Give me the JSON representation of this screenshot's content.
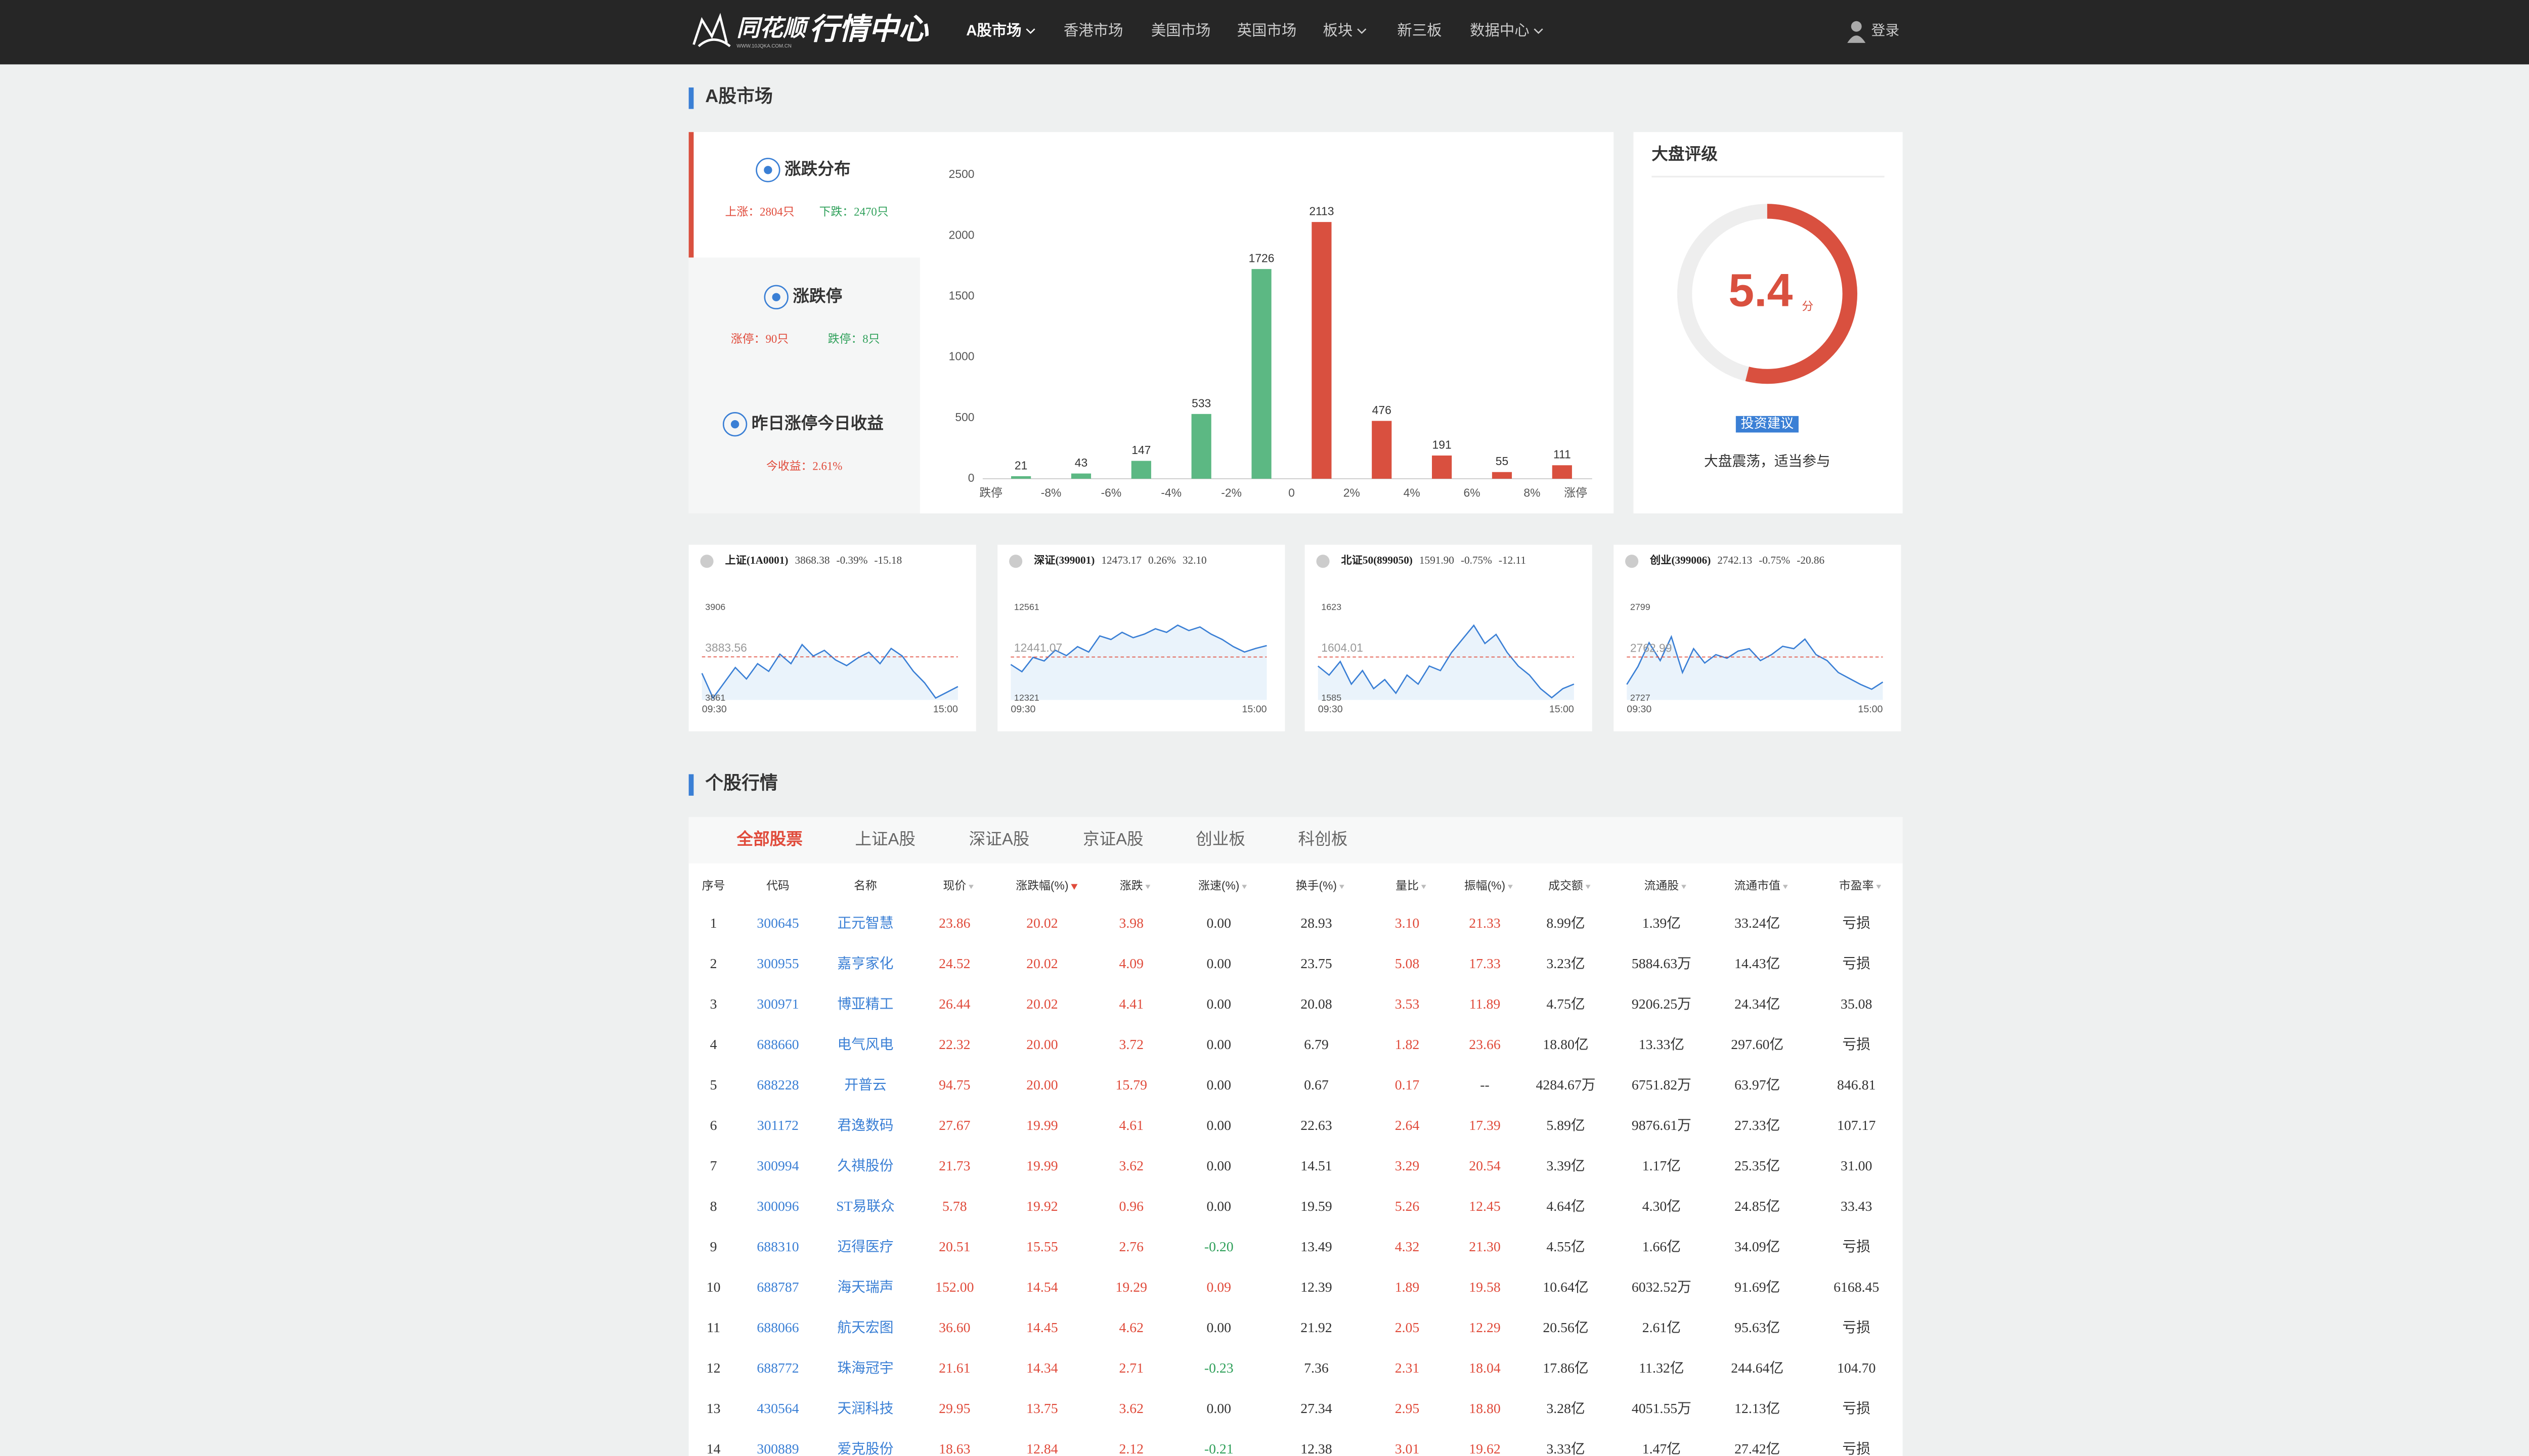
{
  "nav": {
    "logo": "同花顺",
    "logo_sub": "行情中心",
    "logo_url": "WWW.10JQKA.COM.CN",
    "items": [
      "A股市场",
      "香港市场",
      "美国市场",
      "英国市场",
      "板块",
      "新三板",
      "数据中心"
    ],
    "login": "登录"
  },
  "market": {
    "title": "A股市场",
    "tabs": [
      {
        "title": "涨跌分布",
        "stats": [
          "上涨：2804只",
          "下跌：2470只"
        ]
      },
      {
        "title": "涨跌停",
        "stats": [
          "涨停：90只",
          "跌停：8只"
        ]
      },
      {
        "title": "昨日涨停今日收益",
        "stats": [
          "今收益：2.61%"
        ]
      }
    ],
    "distribution": {
      "type": "bar",
      "bins": [
        "跌停",
        "-8%",
        "-6%",
        "-4%",
        "-2%",
        "0",
        "2%",
        "4%",
        "6%",
        "8%",
        "涨停"
      ],
      "values": [
        21,
        43,
        147,
        533,
        1726,
        2113,
        476,
        191,
        55,
        111
      ],
      "colors": [
        "#5cb883",
        "#5cb883",
        "#5cb883",
        "#5cb883",
        "#5cb883",
        "#d9503f",
        "#d9503f",
        "#d9503f",
        "#d9503f",
        "#d9503f"
      ],
      "ylim": [
        0,
        2500
      ],
      "yticks": [
        0,
        500,
        1000,
        1500,
        2000,
        2500
      ]
    }
  },
  "rating": {
    "title": "大盘评级",
    "score": 5.4,
    "unit": "分",
    "badge": "投资建议",
    "comment": "大盘震荡，适当参与"
  },
  "indices": [
    {
      "type": "line",
      "name": "上证(1A0001)",
      "price": "3868.38",
      "pct": "-0.39%",
      "change": "-15.18",
      "ylim": [
        3861,
        3906
      ],
      "yticks": [
        3861,
        3906
      ],
      "prev_close": 3883.56,
      "xticks": [
        "09:30",
        "15:00"
      ],
      "values": [
        3875,
        3862,
        3870,
        3878,
        3872,
        3880,
        3876,
        3885,
        3880,
        3890,
        3884,
        3887,
        3882,
        3879,
        3883,
        3886,
        3880,
        3888,
        3884,
        3876,
        3870,
        3862,
        3865,
        3868
      ]
    },
    {
      "type": "line",
      "name": "深证(399001)",
      "price": "12473.17",
      "pct": "0.26%",
      "change": "32.10",
      "ylim": [
        12321,
        12561
      ],
      "yticks": [
        12321,
        12561
      ],
      "prev_close": 12441.07,
      "xticks": [
        "09:30",
        "15:00"
      ],
      "values": [
        12420,
        12400,
        12440,
        12430,
        12460,
        12445,
        12470,
        12455,
        12500,
        12490,
        12510,
        12495,
        12505,
        12520,
        12510,
        12530,
        12515,
        12525,
        12505,
        12490,
        12470,
        12455,
        12465,
        12473
      ]
    },
    {
      "type": "line",
      "name": "北证50(899050)",
      "price": "1591.90",
      "pct": "-0.75%",
      "change": "-12.11",
      "ylim": [
        1585,
        1623
      ],
      "yticks": [
        1585,
        1623
      ],
      "prev_close": 1604.01,
      "xticks": [
        "09:30",
        "15:00"
      ],
      "values": [
        1600,
        1596,
        1602,
        1592,
        1598,
        1590,
        1594,
        1588,
        1596,
        1592,
        1600,
        1598,
        1606,
        1612,
        1618,
        1610,
        1614,
        1606,
        1600,
        1596,
        1590,
        1586,
        1590,
        1592
      ]
    },
    {
      "type": "line",
      "name": "创业(399006)",
      "price": "2742.13",
      "pct": "-0.75%",
      "change": "-20.86",
      "ylim": [
        2727,
        2799
      ],
      "yticks": [
        2727,
        2799
      ],
      "prev_close": 2762.99,
      "xticks": [
        "09:30",
        "15:00"
      ],
      "values": [
        2740,
        2755,
        2775,
        2760,
        2780,
        2750,
        2770,
        2758,
        2765,
        2762,
        2768,
        2770,
        2760,
        2765,
        2772,
        2770,
        2778,
        2765,
        2760,
        2750,
        2745,
        2740,
        2736,
        2742
      ]
    }
  ],
  "stocks": {
    "title": "个股行情",
    "tabs": [
      "全部股票",
      "上证A股",
      "深证A股",
      "京证A股",
      "创业板",
      "科创板"
    ],
    "active_tab": 0,
    "sorted_column": 4,
    "columns": [
      "序号",
      "代码",
      "名称",
      "现价",
      "涨跌幅(%)",
      "涨跌",
      "涨速(%)",
      "换手(%)",
      "量比",
      "振幅(%)",
      "成交额",
      "流通股",
      "流通市值",
      "市盈率"
    ],
    "rows": [
      [
        "1",
        "300645",
        "正元智慧",
        "23.86",
        "20.02",
        "3.98",
        "0.00",
        "28.93",
        "3.10",
        "21.33",
        "8.99亿",
        "1.39亿",
        "33.24亿",
        "亏损"
      ],
      [
        "2",
        "300955",
        "嘉亨家化",
        "24.52",
        "20.02",
        "4.09",
        "0.00",
        "23.75",
        "5.08",
        "17.33",
        "3.23亿",
        "5884.63万",
        "14.43亿",
        "亏损"
      ],
      [
        "3",
        "300971",
        "博亚精工",
        "26.44",
        "20.02",
        "4.41",
        "0.00",
        "20.08",
        "3.53",
        "11.89",
        "4.75亿",
        "9206.25万",
        "24.34亿",
        "35.08"
      ],
      [
        "4",
        "688660",
        "电气风电",
        "22.32",
        "20.00",
        "3.72",
        "0.00",
        "6.79",
        "1.82",
        "23.66",
        "18.80亿",
        "13.33亿",
        "297.60亿",
        "亏损"
      ],
      [
        "5",
        "688228",
        "开普云",
        "94.75",
        "20.00",
        "15.79",
        "0.00",
        "0.67",
        "0.17",
        "--",
        "4284.67万",
        "6751.82万",
        "63.97亿",
        "846.81"
      ],
      [
        "6",
        "301172",
        "君逸数码",
        "27.67",
        "19.99",
        "4.61",
        "0.00",
        "22.63",
        "2.64",
        "17.39",
        "5.89亿",
        "9876.61万",
        "27.33亿",
        "107.17"
      ],
      [
        "7",
        "300994",
        "久祺股份",
        "21.73",
        "19.99",
        "3.62",
        "0.00",
        "14.51",
        "3.29",
        "20.54",
        "3.39亿",
        "1.17亿",
        "25.35亿",
        "31.00"
      ],
      [
        "8",
        "300096",
        "ST易联众",
        "5.78",
        "19.92",
        "0.96",
        "0.00",
        "19.59",
        "5.26",
        "12.45",
        "4.64亿",
        "4.30亿",
        "24.85亿",
        "33.43"
      ],
      [
        "9",
        "688310",
        "迈得医疗",
        "20.51",
        "15.55",
        "2.76",
        "-0.20",
        "13.49",
        "4.32",
        "21.30",
        "4.55亿",
        "1.66亿",
        "34.09亿",
        "亏损"
      ],
      [
        "10",
        "688787",
        "海天瑞声",
        "152.00",
        "14.54",
        "19.29",
        "0.09",
        "12.39",
        "1.89",
        "19.58",
        "10.64亿",
        "6032.52万",
        "91.69亿",
        "6168.45"
      ],
      [
        "11",
        "688066",
        "航天宏图",
        "36.60",
        "14.45",
        "4.62",
        "0.00",
        "21.92",
        "2.05",
        "12.29",
        "20.56亿",
        "2.61亿",
        "95.63亿",
        "亏损"
      ],
      [
        "12",
        "688772",
        "珠海冠宇",
        "21.61",
        "14.34",
        "2.71",
        "-0.23",
        "7.36",
        "2.31",
        "18.04",
        "17.86亿",
        "11.32亿",
        "244.64亿",
        "104.70"
      ],
      [
        "13",
        "430564",
        "天润科技",
        "29.95",
        "13.75",
        "3.62",
        "0.00",
        "27.34",
        "2.95",
        "18.80",
        "3.28亿",
        "4051.55万",
        "12.13亿",
        "亏损"
      ],
      [
        "14",
        "300889",
        "爱克股份",
        "18.63",
        "12.84",
        "2.12",
        "-0.21",
        "12.38",
        "3.01",
        "19.62",
        "3.33亿",
        "1.47亿",
        "27.42亿",
        "亏损"
      ]
    ]
  }
}
